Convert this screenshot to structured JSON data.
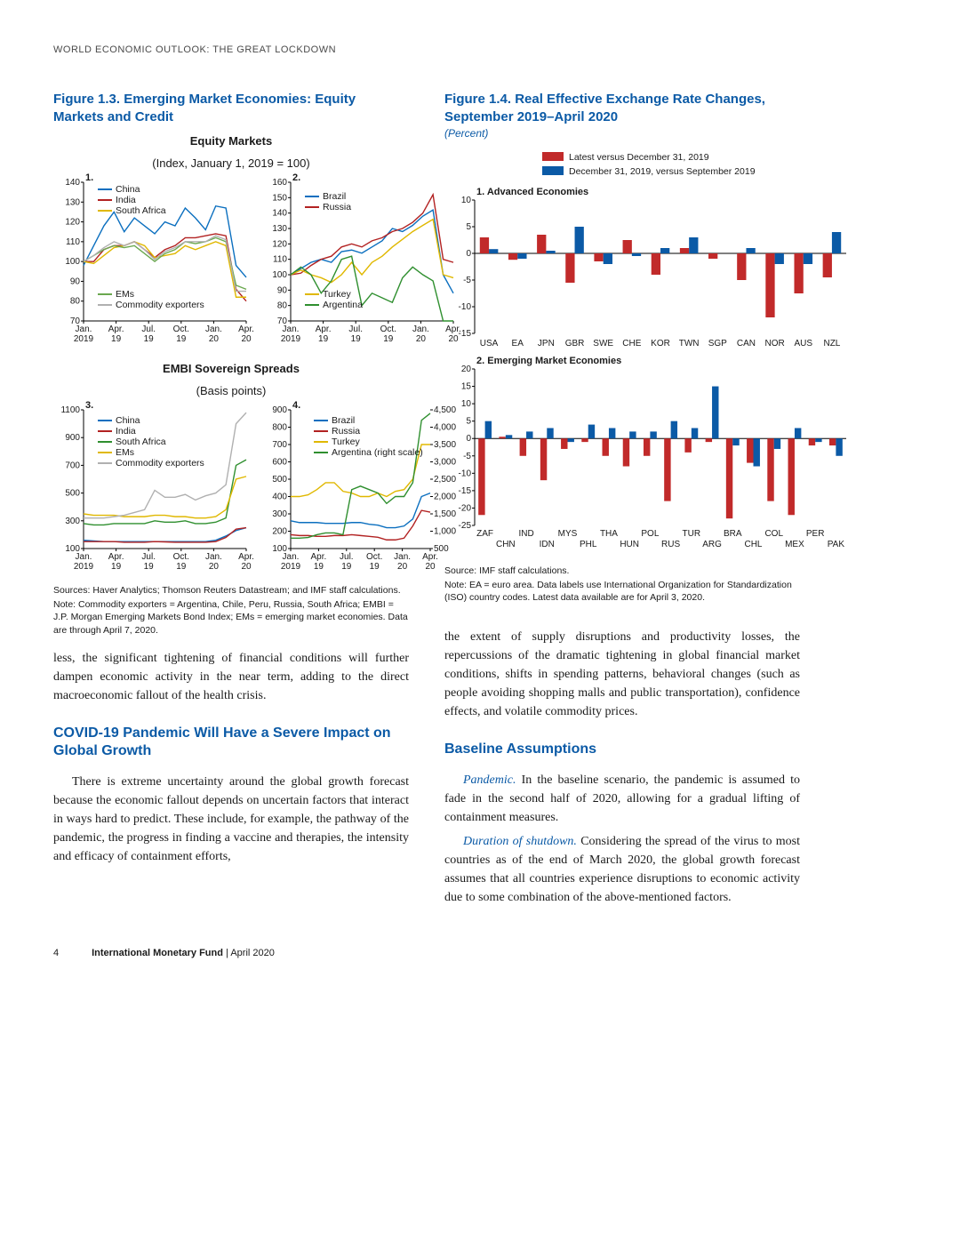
{
  "running_head": "WORLD ECONOMIC OUTLOOK: THE GREAT LOCKDOWN",
  "footer": {
    "page": "4",
    "pub": "International Monetary Fund",
    "issue": " | April 2020"
  },
  "fig13": {
    "title": "Figure 1.3. Emerging Market Economies: Equity Markets and Credit",
    "sub1": {
      "title": "Equity Markets",
      "unit": "(Index, January 1, 2019 = 100)"
    },
    "sub2": {
      "title": "EMBI Sovereign Spreads",
      "unit": "(Basis points)"
    },
    "sources": "Sources: Haver Analytics; Thomson Reuters Datastream; and IMF staff calculations.",
    "note": "Note: Commodity exporters = Argentina, Chile, Peru, Russia, South Africa; EMBI = J.P. Morgan Emerging Markets Bond Index; EMs = emerging market economies. Data are through April 7, 2020.",
    "xlabels": [
      "Jan.",
      "Apr.",
      "Jul.",
      "Oct.",
      "Jan.",
      "Apr."
    ],
    "xlabels2": [
      "2019",
      "19",
      "19",
      "19",
      "20",
      "20"
    ],
    "panel1": {
      "num": "1.",
      "ylim": [
        70,
        140
      ],
      "yticks": [
        70,
        80,
        90,
        100,
        110,
        120,
        130,
        140
      ],
      "series": [
        {
          "label": "China",
          "color": "#0b6fbf",
          "pts": [
            98,
            108,
            118,
            125,
            115,
            122,
            118,
            114,
            120,
            118,
            127,
            122,
            116,
            128,
            127,
            98,
            92
          ]
        },
        {
          "label": "India",
          "color": "#b22222",
          "pts": [
            100,
            100,
            106,
            108,
            108,
            110,
            106,
            102,
            106,
            108,
            112,
            112,
            113,
            114,
            113,
            86,
            80
          ]
        },
        {
          "label": "South Africa",
          "color": "#e0b800",
          "pts": [
            100,
            99,
            103,
            107,
            108,
            110,
            108,
            102,
            103,
            104,
            108,
            106,
            108,
            110,
            108,
            82,
            82
          ]
        },
        {
          "label": "EMs",
          "color": "#6aa84f",
          "pts": [
            100,
            103,
            106,
            108,
            107,
            108,
            104,
            100,
            104,
            106,
            110,
            109,
            110,
            112,
            110,
            88,
            86
          ]
        },
        {
          "label": "Commodity exporters",
          "color": "#b0b0b0",
          "pts": [
            100,
            103,
            107,
            110,
            108,
            110,
            106,
            101,
            105,
            107,
            110,
            110,
            110,
            113,
            111,
            85,
            85
          ]
        }
      ]
    },
    "panel2": {
      "num": "2.",
      "ylim": [
        70,
        160
      ],
      "yticks": [
        70,
        80,
        90,
        100,
        110,
        120,
        130,
        140,
        150,
        160
      ],
      "series": [
        {
          "label": "Brazil",
          "color": "#0b6fbf",
          "pts": [
            100,
            104,
            108,
            110,
            108,
            115,
            116,
            114,
            118,
            122,
            130,
            128,
            132,
            138,
            142,
            100,
            88
          ]
        },
        {
          "label": "Russia",
          "color": "#b22222",
          "pts": [
            100,
            101,
            106,
            110,
            112,
            118,
            120,
            118,
            122,
            124,
            128,
            130,
            134,
            140,
            152,
            110,
            108
          ]
        },
        {
          "label": "Turkey",
          "color": "#e0b800",
          "pts": [
            100,
            103,
            100,
            98,
            95,
            100,
            108,
            100,
            108,
            112,
            118,
            123,
            128,
            132,
            136,
            100,
            98
          ]
        },
        {
          "label": "Argentina",
          "color": "#2f8f2f",
          "pts": [
            100,
            105,
            100,
            88,
            96,
            110,
            112,
            80,
            88,
            85,
            82,
            98,
            105,
            100,
            96,
            70,
            70
          ]
        }
      ]
    },
    "panel3": {
      "num": "3.",
      "ylim": [
        100,
        1100
      ],
      "yticks": [
        100,
        300,
        500,
        700,
        900,
        1100
      ],
      "series": [
        {
          "label": "China",
          "color": "#0b6fbf",
          "pts": [
            160,
            155,
            150,
            150,
            150,
            150,
            150,
            150,
            150,
            150,
            150,
            150,
            150,
            160,
            190,
            230,
            250
          ]
        },
        {
          "label": "India",
          "color": "#b22222",
          "pts": [
            150,
            150,
            150,
            150,
            145,
            145,
            145,
            150,
            148,
            145,
            145,
            145,
            145,
            150,
            180,
            240,
            250
          ]
        },
        {
          "label": "South Africa",
          "color": "#2f8f2f",
          "pts": [
            280,
            270,
            270,
            280,
            280,
            280,
            280,
            300,
            290,
            290,
            300,
            280,
            280,
            290,
            320,
            700,
            740
          ]
        },
        {
          "label": "EMs",
          "color": "#e0b800",
          "pts": [
            350,
            340,
            340,
            340,
            330,
            330,
            330,
            340,
            340,
            330,
            330,
            320,
            320,
            330,
            380,
            600,
            620
          ]
        },
        {
          "label": "Commodity exporters",
          "color": "#b0b0b0",
          "pts": [
            320,
            320,
            320,
            330,
            340,
            360,
            380,
            520,
            470,
            470,
            490,
            450,
            480,
            500,
            560,
            1000,
            1080
          ]
        }
      ]
    },
    "panel4": {
      "num": "4.",
      "ylim_l": [
        100,
        900
      ],
      "yticks_l": [
        100,
        200,
        300,
        400,
        500,
        600,
        700,
        800,
        900
      ],
      "ylim_r": [
        500,
        4500
      ],
      "yticks_r": [
        500,
        1000,
        1500,
        2000,
        2500,
        3000,
        3500,
        4000,
        4500
      ],
      "series": [
        {
          "label": "Brazil",
          "color": "#0b6fbf",
          "axis": "l",
          "pts": [
            260,
            250,
            250,
            250,
            245,
            245,
            245,
            250,
            250,
            240,
            235,
            220,
            220,
            230,
            270,
            400,
            420
          ]
        },
        {
          "label": "Russia",
          "color": "#b22222",
          "axis": "l",
          "pts": [
            180,
            175,
            175,
            170,
            170,
            175,
            175,
            180,
            175,
            170,
            165,
            150,
            150,
            160,
            230,
            320,
            310
          ]
        },
        {
          "label": "Turkey",
          "color": "#e0b800",
          "axis": "l",
          "pts": [
            400,
            400,
            410,
            440,
            480,
            480,
            430,
            420,
            400,
            400,
            420,
            400,
            430,
            440,
            500,
            700,
            700
          ]
        },
        {
          "label": "Argentina (right scale)",
          "color": "#2f8f2f",
          "axis": "r",
          "pts": [
            800,
            800,
            820,
            900,
            950,
            950,
            900,
            2200,
            2300,
            2200,
            2100,
            1800,
            2000,
            2000,
            2400,
            4200,
            4400
          ]
        }
      ]
    }
  },
  "fig14": {
    "title": "Figure 1.4. Real Effective Exchange Rate Changes, September 2019–April 2020",
    "unit": "(Percent)",
    "legend": [
      {
        "label": "Latest versus December 31, 2019",
        "color": "#c12a2a"
      },
      {
        "label": "December 31, 2019, versus September 2019",
        "color": "#0b5aa6"
      }
    ],
    "source": "Source: IMF staff calculations.",
    "note": "Note: EA = euro area. Data labels use International Organization for Standardization (ISO) country codes. Latest data available are for April 3, 2020.",
    "panel1": {
      "title": "1. Advanced Economies",
      "ylim": [
        -15,
        10
      ],
      "yticks": [
        -15,
        -10,
        -5,
        0,
        5,
        10
      ],
      "cats": [
        "USA",
        "EA",
        "JPN",
        "GBR",
        "SWE",
        "CHE",
        "KOR",
        "TWN",
        "SGP",
        "CAN",
        "NOR",
        "AUS",
        "NZL"
      ],
      "red": [
        3,
        -1.2,
        3.5,
        -5.5,
        -1.5,
        2.5,
        -4,
        1,
        -1,
        -5,
        -12,
        -7.5,
        -4.5
      ],
      "blue": [
        0.8,
        -1,
        0.5,
        5,
        -2,
        -0.5,
        1,
        3,
        0,
        1,
        -2,
        -2,
        4
      ]
    },
    "panel2": {
      "title": "2. Emerging Market Economies",
      "ylim": [
        -25,
        20
      ],
      "yticks": [
        -25,
        -20,
        -15,
        -10,
        -5,
        0,
        5,
        10,
        15,
        20
      ],
      "cats_top": [
        "ZAF",
        "IND",
        "MYS",
        "THA",
        "POL",
        "TUR",
        "BRA",
        "COL",
        "PER"
      ],
      "cats_bot": [
        "CHN",
        "IDN",
        "PHL",
        "HUN",
        "RUS",
        "ARG",
        "CHL",
        "MEX",
        "PAK"
      ],
      "cats": [
        "ZAF",
        "CHN",
        "IND",
        "IDN",
        "MYS",
        "PHL",
        "THA",
        "HUN",
        "POL",
        "RUS",
        "TUR",
        "ARG",
        "BRA",
        "CHL",
        "COL",
        "MEX",
        "PER",
        "PAK"
      ],
      "red": [
        -22,
        0.5,
        -5,
        -12,
        -3,
        -1,
        -5,
        -8,
        -5,
        -18,
        -4,
        -1,
        -23,
        -7,
        -18,
        -22,
        -2,
        -2
      ],
      "blue": [
        5,
        1,
        2,
        3,
        -1,
        4,
        3,
        2,
        2,
        5,
        3,
        15,
        -2,
        -8,
        -3,
        3,
        -1,
        -5
      ]
    }
  },
  "col1_body": {
    "p1": "less, the significant tightening of financial conditions will further dampen economic activity in the near term, adding to the direct macroeconomic fallout of the health crisis.",
    "h1": "COVID-19 Pandemic Will Have a Severe Impact on Global Growth",
    "p2": "There is extreme uncertainty around the global growth forecast because the economic fallout depends on uncertain factors that interact in ways hard to predict. These include, for example, the pathway of the pandemic, the progress in finding a vaccine and therapies, the intensity and efficacy of containment efforts,"
  },
  "col2_body": {
    "p1": "the extent of supply disruptions and productivity losses, the repercussions of the dramatic tightening in global financial market conditions, shifts in spending patterns, behavioral changes (such as people avoiding shopping malls and public transportation), confidence effects, and volatile commodity prices.",
    "h1": "Baseline Assumptions",
    "l1": "Pandemic.",
    "p2": " In the baseline scenario, the pandemic is assumed to fade in the second half of 2020, allowing for a gradual lifting of containment measures.",
    "l2": "Duration of shutdown.",
    "p3": " Considering the spread of the virus to most countries as of the end of March 2020, the global growth forecast assumes that all countries experience disruptions to economic activity due to some combination of the above-mentioned factors."
  }
}
